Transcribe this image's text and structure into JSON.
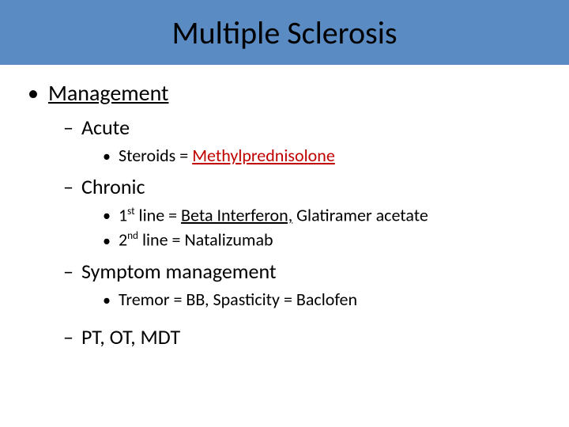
{
  "colors": {
    "title_bar_bg": "#5a8bc2",
    "title_text": "#000000",
    "body_text": "#000000",
    "accent_red": "#c00000",
    "background": "#ffffff"
  },
  "typography": {
    "title_fontsize": 40,
    "level1_fontsize": 28,
    "level2_fontsize": 26,
    "level3_fontsize": 22,
    "font_family": "Calibri"
  },
  "title": "Multiple Sclerosis",
  "level1": {
    "label": "Management"
  },
  "sections": {
    "acute": {
      "heading": "Acute",
      "item1_prefix": "Steroids = ",
      "item1_accent": "Methylprednisolone"
    },
    "chronic": {
      "heading": "Chronic",
      "line1_ord": "1",
      "line1_sup": "st",
      "line1_mid": " line = ",
      "line1_underlined": "Beta Interferon,",
      "line1_tail": " Glatiramer acetate",
      "line2_ord": "2",
      "line2_sup": "nd",
      "line2_tail": " line = Natalizumab"
    },
    "symptom": {
      "heading": "Symptom management",
      "item1": "Tremor = BB, Spasticity = Baclofen"
    },
    "ptot": {
      "heading": "PT, OT, MDT"
    }
  }
}
